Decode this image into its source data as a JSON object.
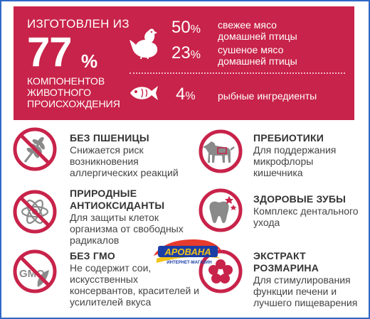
{
  "banner": {
    "made_of": "ИЗГОТОВЛЕН ИЗ",
    "big_number": "77",
    "big_percent": "%",
    "description": "КОМПОНЕНТОВ ЖИВОТНОГО ПРОИСХОЖДЕНИЯ",
    "rows": [
      {
        "value": "50",
        "unit": "%",
        "text": "свежее мясо домашней птицы",
        "icon": "chicken-icon"
      },
      {
        "value": "23",
        "unit": "%",
        "text": "сушеное мясо домашней птицы",
        "icon": "chicken-icon"
      },
      {
        "value": "4",
        "unit": "%",
        "text": "рыбные ингредиенты",
        "icon": "fish-icon"
      }
    ],
    "color": "#c8234a"
  },
  "features": {
    "no_wheat": {
      "title": "БЕЗ ПШЕНИЦЫ",
      "text": "Снижается риск возникновения аллергических реакций",
      "icon": "wheat-icon"
    },
    "antioxidants": {
      "title": "ПРИРОДНЫЕ АНТИОКСИДАНТЫ",
      "text": "Для защиты клеток организма от свободных радикалов",
      "icon": "atom-icon"
    },
    "no_gmo": {
      "title": "БЕЗ ГМО",
      "text": "Не содержит сои, искусственных консервантов, красителей и усилителей вкуса",
      "icon": "gmo-leaf-icon",
      "icon_label": "GMO"
    },
    "prebiotics": {
      "title": "ПРЕБИОТИКИ",
      "text": "Для поддержания микрофлоры кишечника",
      "icon": "dog-icon"
    },
    "teeth": {
      "title": "ЗДОРОВЫЕ ЗУБЫ",
      "text": "Комплекс дентального ухода",
      "icon": "tooth-icon"
    },
    "rosemary": {
      "title": "ЭКСТРАКТ РОЗМАРИНА",
      "text": "Для стимулирования функции печени и лучшего пищеварения",
      "icon": "flower-icon"
    }
  },
  "watermark": {
    "name": "АРОВАНА",
    "subtitle": "ИНТЕРНЕТ-МАГАЗИН"
  },
  "colors": {
    "accent": "#c8234a",
    "icon_gray": "#8a8a8a",
    "frame": "#2f67c7"
  }
}
